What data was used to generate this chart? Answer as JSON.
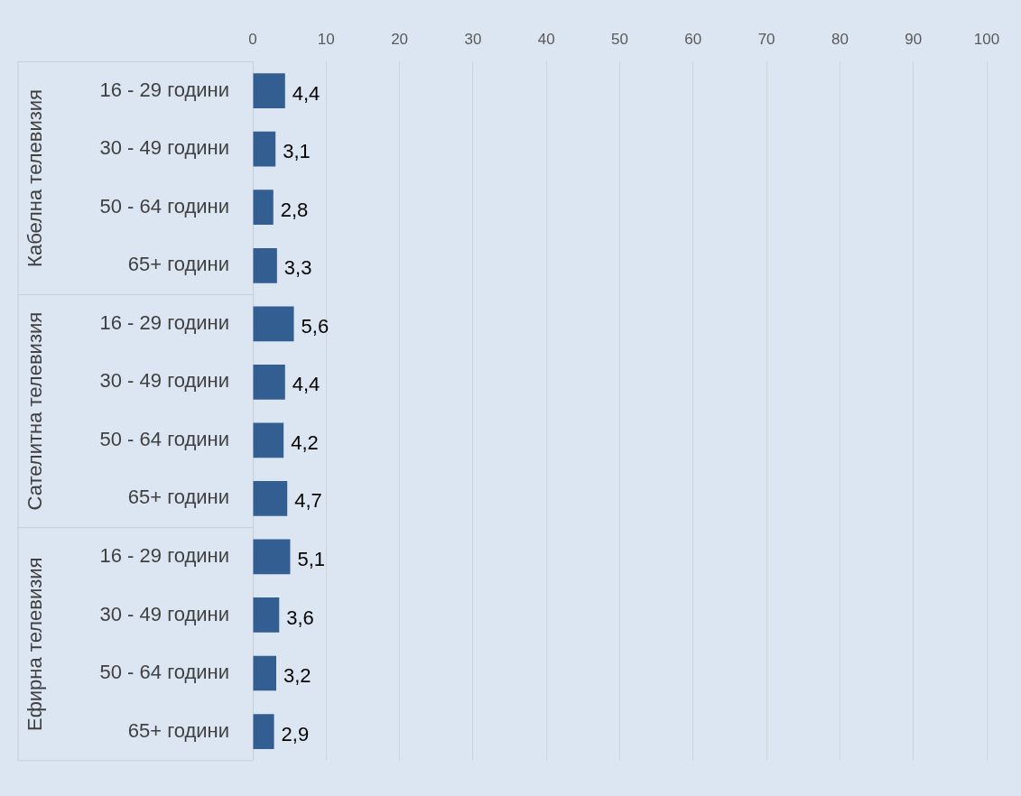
{
  "chart_data": {
    "type": "bar",
    "orientation": "horizontal",
    "categories": [
      "16 - 29 години",
      "30 - 49 години",
      "50 - 64 години",
      "65+ години",
      "16 - 29 години",
      "30 - 49 години",
      "50 - 64 години",
      "65+ години",
      "16 - 29 години",
      "30 - 49 години",
      "50 - 64 години",
      "65+ години"
    ],
    "values": [
      4.4,
      3.1,
      2.8,
      3.3,
      5.6,
      4.4,
      4.2,
      4.7,
      5.1,
      3.6,
      3.2,
      2.9
    ],
    "value_labels": [
      "4,4",
      "3,1",
      "2,8",
      "3,3",
      "5,6",
      "4,4",
      "4,2",
      "4,7",
      "5,1",
      "3,6",
      "3,2",
      "2,9"
    ],
    "color": "#335e92",
    "xlim": [
      0,
      100
    ],
    "xticks": [
      0,
      10,
      20,
      30,
      40,
      50,
      60,
      70,
      80,
      90,
      100
    ],
    "grid": "x",
    "legend": false,
    "annotations": [
      "Кабелна телевизия",
      "Сателитна телевизия",
      "Ефирна телевизия"
    ]
  }
}
